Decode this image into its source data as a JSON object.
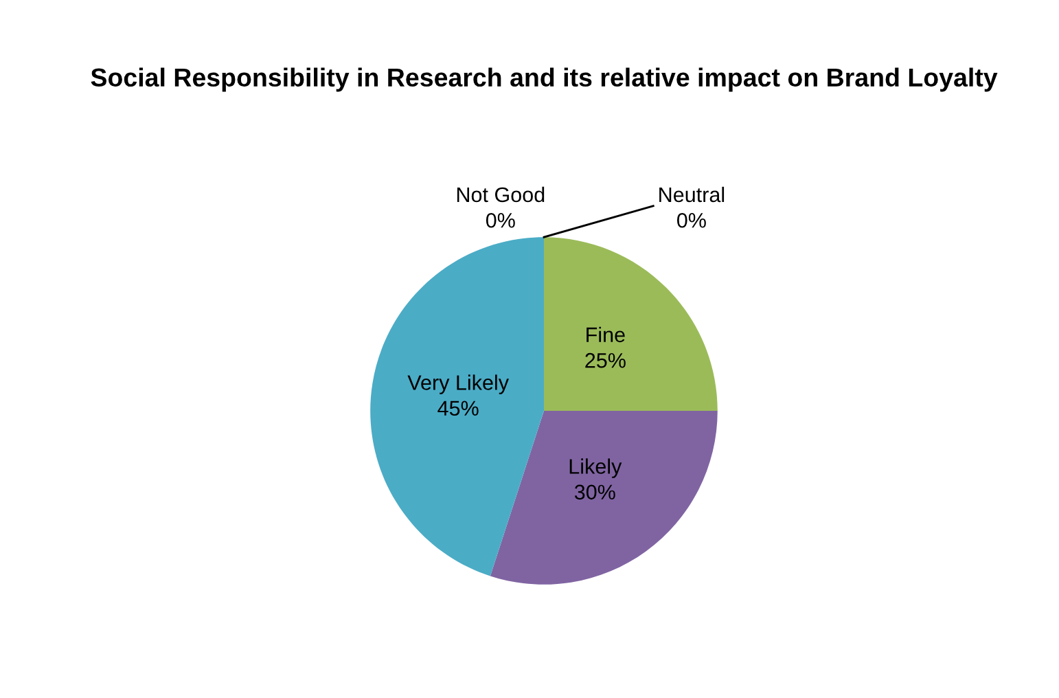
{
  "chart_data": {
    "type": "pie",
    "title": "Social Responsibility in Research and its relative impact on Brand Loyalty",
    "categories": [
      "Fine",
      "Likely",
      "Very Likely",
      "Not Good",
      "Neutral"
    ],
    "values": [
      25,
      30,
      45,
      0,
      0
    ],
    "value_labels": [
      "25%",
      "30%",
      "45%",
      "0%",
      "0%"
    ],
    "colors": [
      "#9bbb59",
      "#8064a2",
      "#4bacc6",
      "#4f81bd",
      "#c0504d"
    ],
    "legend": false
  }
}
